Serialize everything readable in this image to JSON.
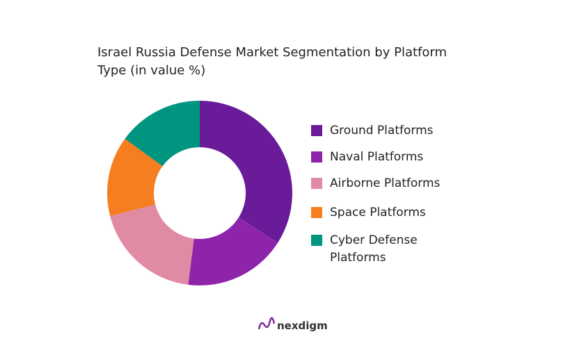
{
  "chart_data": {
    "type": "donut",
    "title": "Israel Russia Defense Market Segmentation by Platform Type (in value %)",
    "categories": [
      "Ground Platforms",
      "Naval Platforms",
      "Airborne Platforms",
      "Space Platforms",
      "Cyber Defense Platforms"
    ],
    "values": [
      34,
      18,
      19,
      14,
      15
    ],
    "colors": [
      "#6a1b9a",
      "#8e24aa",
      "#e08aa3",
      "#f57f20",
      "#00957f"
    ],
    "legend": "right"
  },
  "brand": "nexdigm"
}
